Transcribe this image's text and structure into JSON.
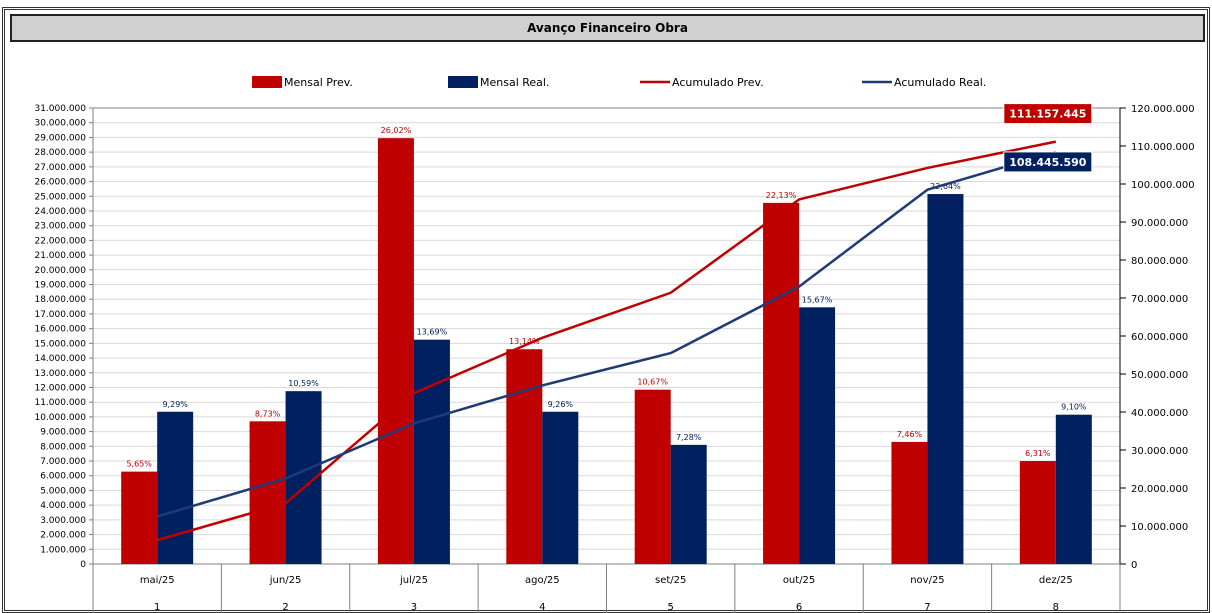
{
  "title": "Avanço Financeiro Obra",
  "chart_data": {
    "type": "bar",
    "categories": [
      "mai/25",
      "jun/25",
      "jul/25",
      "ago/25",
      "set/25",
      "out/25",
      "nov/25",
      "dez/25"
    ],
    "category_numbers": [
      "1",
      "2",
      "3",
      "4",
      "5",
      "6",
      "7",
      "8"
    ],
    "series": [
      {
        "name": "Mensal Prev.",
        "kind": "bar",
        "axis": "left",
        "color": "#c00000",
        "values": [
          6280000,
          9700000,
          28950000,
          14600000,
          11850000,
          24550000,
          8300000,
          7000000
        ],
        "labels": [
          "5,65%",
          "8,73%",
          "26,02%",
          "13,14%",
          "10,67%",
          "22,13%",
          "7,46%",
          "6,31%"
        ]
      },
      {
        "name": "Mensal Real.",
        "kind": "bar",
        "axis": "left",
        "color": "#002060",
        "values": [
          10350000,
          11750000,
          15250000,
          10350000,
          8100000,
          17450000,
          25150000,
          10150000
        ],
        "labels": [
          "9,29%",
          "10,59%",
          "13,69%",
          "9,26%",
          "7,28%",
          "15,67%",
          "22,64%",
          "9,10%"
        ]
      },
      {
        "name": "Acumulado Prev.",
        "kind": "line",
        "axis": "right",
        "color": "#c00000",
        "values": [
          6280000,
          15980000,
          44930000,
          59530000,
          71380000,
          95930000,
          104230000,
          111157445
        ]
      },
      {
        "name": "Acumulado Real.",
        "kind": "line",
        "axis": "right",
        "color": "#1f3a75",
        "values": [
          12500000,
          22500000,
          37000000,
          47000000,
          55500000,
          73000000,
          98500000,
          108445590
        ]
      }
    ],
    "left_axis": {
      "min": 0,
      "max": 31000000,
      "step": 1000000,
      "tick_labels": [
        "0",
        "1.000.000",
        "2.000.000",
        "3.000.000",
        "4.000.000",
        "5.000.000",
        "6.000.000",
        "7.000.000",
        "8.000.000",
        "9.000.000",
        "10.000.000",
        "11.000.000",
        "12.000.000",
        "13.000.000",
        "14.000.000",
        "15.000.000",
        "16.000.000",
        "17.000.000",
        "18.000.000",
        "19.000.000",
        "20.000.000",
        "21.000.000",
        "22.000.000",
        "23.000.000",
        "24.000.000",
        "25.000.000",
        "26.000.000",
        "27.000.000",
        "28.000.000",
        "29.000.000",
        "30.000.000",
        "31.000.000"
      ]
    },
    "right_axis": {
      "min": 0,
      "max": 120000000,
      "step": 10000000,
      "tick_labels": [
        "0",
        "10.000.000",
        "20.000.000",
        "30.000.000",
        "40.000.000",
        "50.000.000",
        "60.000.000",
        "70.000.000",
        "80.000.000",
        "90.000.000",
        "100.000.000",
        "110.000.000",
        "120.000.000"
      ]
    },
    "callouts": [
      {
        "series": "Acumulado Prev.",
        "text": "111.157.445",
        "color": "#c00000"
      },
      {
        "series": "Acumulado Real.",
        "text": "108.445.590",
        "color": "#002060"
      }
    ],
    "legend_position": "top",
    "grid": true
  }
}
